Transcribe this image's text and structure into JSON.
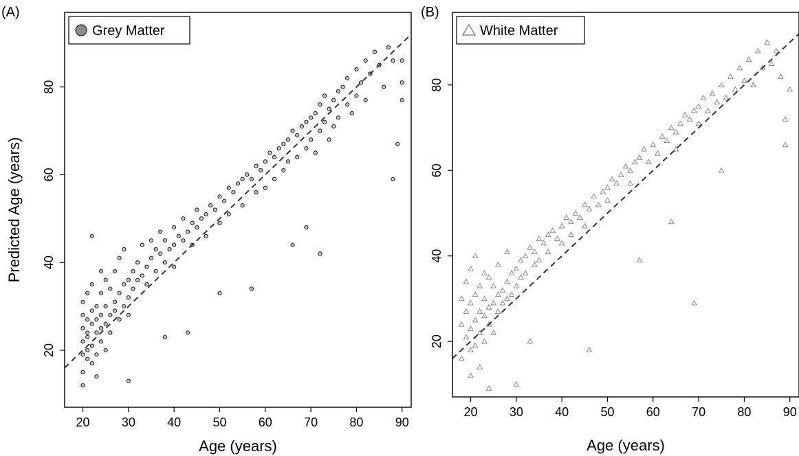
{
  "chart_data": [
    {
      "panel_label": "(A)",
      "type": "scatter",
      "legend": {
        "label": "Grey Matter",
        "placement": "top-left",
        "marker": "circle"
      },
      "xlabel": "Age (years)",
      "ylabel": "Predicted Age (years)",
      "xlim": [
        16,
        92
      ],
      "ylim": [
        7,
        97
      ],
      "xticks": [
        20,
        30,
        40,
        50,
        60,
        70,
        80,
        90
      ],
      "yticks": [
        20,
        40,
        60,
        80
      ],
      "reference_line": {
        "style": "dashed",
        "slope": 1,
        "intercept": 0
      },
      "grid": false,
      "colors": {
        "marker_fill": "#c8c8c8",
        "marker_stroke": "#1a1a1a"
      },
      "points": [
        [
          20,
          22
        ],
        [
          20,
          28
        ],
        [
          20,
          15
        ],
        [
          20,
          25
        ],
        [
          20,
          19
        ],
        [
          20,
          31
        ],
        [
          20,
          12
        ],
        [
          21,
          24
        ],
        [
          21,
          27
        ],
        [
          21,
          20
        ],
        [
          21,
          18
        ],
        [
          21,
          33
        ],
        [
          21,
          23
        ],
        [
          22,
          26
        ],
        [
          22,
          21
        ],
        [
          22,
          29
        ],
        [
          22,
          17
        ],
        [
          22,
          35
        ],
        [
          22,
          46
        ],
        [
          23,
          24
        ],
        [
          23,
          30
        ],
        [
          23,
          19
        ],
        [
          23,
          27
        ],
        [
          23,
          14
        ],
        [
          24,
          25
        ],
        [
          24,
          28
        ],
        [
          24,
          22
        ],
        [
          24,
          33
        ],
        [
          24,
          38
        ],
        [
          25,
          26
        ],
        [
          25,
          30
        ],
        [
          25,
          20
        ],
        [
          25,
          36
        ],
        [
          26,
          28
        ],
        [
          26,
          24
        ],
        [
          26,
          34
        ],
        [
          27,
          31
        ],
        [
          27,
          29
        ],
        [
          27,
          38
        ],
        [
          28,
          33
        ],
        [
          28,
          27
        ],
        [
          28,
          41
        ],
        [
          29,
          35
        ],
        [
          29,
          30
        ],
        [
          29,
          43
        ],
        [
          30,
          36
        ],
        [
          30,
          32
        ],
        [
          30,
          28
        ],
        [
          31,
          38
        ],
        [
          31,
          34
        ],
        [
          32,
          40
        ],
        [
          32,
          36
        ],
        [
          33,
          37
        ],
        [
          33,
          44
        ],
        [
          34,
          39
        ],
        [
          34,
          35
        ],
        [
          35,
          41
        ],
        [
          35,
          45
        ],
        [
          36,
          38
        ],
        [
          36,
          43
        ],
        [
          37,
          42
        ],
        [
          37,
          47
        ],
        [
          38,
          40
        ],
        [
          38,
          45
        ],
        [
          39,
          43
        ],
        [
          40,
          44
        ],
        [
          40,
          39
        ],
        [
          40,
          48
        ],
        [
          41,
          46
        ],
        [
          42,
          45
        ],
        [
          42,
          50
        ],
        [
          43,
          47
        ],
        [
          44,
          49
        ],
        [
          44,
          44
        ],
        [
          45,
          48
        ],
        [
          45,
          52
        ],
        [
          46,
          50
        ],
        [
          47,
          51
        ],
        [
          47,
          46
        ],
        [
          48,
          53
        ],
        [
          49,
          52
        ],
        [
          50,
          55
        ],
        [
          50,
          49
        ],
        [
          51,
          54
        ],
        [
          52,
          57
        ],
        [
          52,
          51
        ],
        [
          53,
          56
        ],
        [
          54,
          58
        ],
        [
          55,
          59
        ],
        [
          55,
          53
        ],
        [
          56,
          60
        ],
        [
          57,
          59
        ],
        [
          58,
          62
        ],
        [
          58,
          56
        ],
        [
          59,
          61
        ],
        [
          60,
          63
        ],
        [
          60,
          57
        ],
        [
          61,
          65
        ],
        [
          62,
          64
        ],
        [
          62,
          59
        ],
        [
          63,
          66
        ],
        [
          64,
          67
        ],
        [
          64,
          61
        ],
        [
          65,
          68
        ],
        [
          65,
          63
        ],
        [
          66,
          70
        ],
        [
          67,
          69
        ],
        [
          67,
          64
        ],
        [
          68,
          71
        ],
        [
          69,
          72
        ],
        [
          69,
          66
        ],
        [
          70,
          73
        ],
        [
          70,
          68
        ],
        [
          71,
          74
        ],
        [
          71,
          65
        ],
        [
          72,
          76
        ],
        [
          72,
          70
        ],
        [
          73,
          72
        ],
        [
          73,
          78
        ],
        [
          74,
          75
        ],
        [
          74,
          68
        ],
        [
          75,
          77
        ],
        [
          75,
          71
        ],
        [
          76,
          79
        ],
        [
          76,
          73
        ],
        [
          77,
          80
        ],
        [
          78,
          76
        ],
        [
          78,
          82
        ],
        [
          79,
          74
        ],
        [
          80,
          84
        ],
        [
          80,
          78
        ],
        [
          81,
          81
        ],
        [
          82,
          86
        ],
        [
          82,
          77
        ],
        [
          83,
          83
        ],
        [
          84,
          88
        ],
        [
          85,
          85
        ],
        [
          86,
          80
        ],
        [
          87,
          89
        ],
        [
          88,
          59
        ],
        [
          88,
          86
        ],
        [
          89,
          67
        ],
        [
          90,
          86
        ],
        [
          90,
          81
        ],
        [
          90,
          77
        ],
        [
          69,
          48
        ],
        [
          72,
          42
        ],
        [
          66,
          44
        ],
        [
          57,
          34
        ],
        [
          50,
          33
        ],
        [
          43,
          24
        ],
        [
          38,
          23
        ],
        [
          30,
          13
        ]
      ]
    },
    {
      "panel_label": "(B)",
      "type": "scatter",
      "legend": {
        "label": "White Matter",
        "placement": "top-left",
        "marker": "triangle"
      },
      "xlabel": "Age (years)",
      "ylabel": "",
      "xlim": [
        16,
        92
      ],
      "ylim": [
        7,
        97
      ],
      "xticks": [
        20,
        30,
        40,
        50,
        60,
        70,
        80,
        90
      ],
      "yticks": [
        20,
        40,
        60,
        80
      ],
      "reference_line": {
        "style": "dashed",
        "slope": 1,
        "intercept": 0
      },
      "grid": false,
      "colors": {
        "marker_stroke": "#8a8a8a"
      },
      "points": [
        [
          18,
          24
        ],
        [
          18,
          30
        ],
        [
          18,
          16
        ],
        [
          19,
          27
        ],
        [
          19,
          21
        ],
        [
          19,
          34
        ],
        [
          20,
          23
        ],
        [
          20,
          29
        ],
        [
          20,
          18
        ],
        [
          20,
          37
        ],
        [
          20,
          12
        ],
        [
          21,
          25
        ],
        [
          21,
          31
        ],
        [
          21,
          19
        ],
        [
          21,
          40
        ],
        [
          22,
          27
        ],
        [
          22,
          22
        ],
        [
          22,
          33
        ],
        [
          22,
          14
        ],
        [
          23,
          26
        ],
        [
          23,
          30
        ],
        [
          23,
          20
        ],
        [
          23,
          36
        ],
        [
          24,
          28
        ],
        [
          24,
          24
        ],
        [
          24,
          35
        ],
        [
          24,
          9
        ],
        [
          25,
          29
        ],
        [
          25,
          33
        ],
        [
          25,
          22
        ],
        [
          26,
          31
        ],
        [
          26,
          27
        ],
        [
          26,
          38
        ],
        [
          27,
          32
        ],
        [
          27,
          29
        ],
        [
          28,
          34
        ],
        [
          28,
          30
        ],
        [
          28,
          41
        ],
        [
          29,
          36
        ],
        [
          29,
          31
        ],
        [
          30,
          37
        ],
        [
          30,
          33
        ],
        [
          31,
          39
        ],
        [
          31,
          35
        ],
        [
          32,
          40
        ],
        [
          32,
          36
        ],
        [
          33,
          42
        ],
        [
          34,
          41
        ],
        [
          34,
          38
        ],
        [
          35,
          44
        ],
        [
          35,
          39
        ],
        [
          36,
          43
        ],
        [
          37,
          45
        ],
        [
          37,
          41
        ],
        [
          38,
          46
        ],
        [
          39,
          44
        ],
        [
          40,
          47
        ],
        [
          40,
          43
        ],
        [
          41,
          49
        ],
        [
          42,
          48
        ],
        [
          42,
          45
        ],
        [
          43,
          50
        ],
        [
          44,
          49
        ],
        [
          45,
          52
        ],
        [
          45,
          47
        ],
        [
          46,
          51
        ],
        [
          47,
          54
        ],
        [
          48,
          52
        ],
        [
          49,
          55
        ],
        [
          50,
          56
        ],
        [
          50,
          53
        ],
        [
          51,
          58
        ],
        [
          52,
          57
        ],
        [
          53,
          59
        ],
        [
          54,
          61
        ],
        [
          55,
          60
        ],
        [
          55,
          57
        ],
        [
          56,
          62
        ],
        [
          57,
          63
        ],
        [
          58,
          65
        ],
        [
          59,
          62
        ],
        [
          60,
          66
        ],
        [
          61,
          64
        ],
        [
          62,
          68
        ],
        [
          63,
          67
        ],
        [
          64,
          70
        ],
        [
          65,
          69
        ],
        [
          65,
          65
        ],
        [
          66,
          71
        ],
        [
          67,
          73
        ],
        [
          68,
          72
        ],
        [
          69,
          74
        ],
        [
          70,
          75
        ],
        [
          70,
          71
        ],
        [
          71,
          77
        ],
        [
          72,
          74
        ],
        [
          73,
          78
        ],
        [
          74,
          76
        ],
        [
          75,
          80
        ],
        [
          76,
          77
        ],
        [
          77,
          82
        ],
        [
          78,
          79
        ],
        [
          79,
          84
        ],
        [
          80,
          81
        ],
        [
          81,
          86
        ],
        [
          82,
          80
        ],
        [
          83,
          88
        ],
        [
          84,
          84
        ],
        [
          85,
          90
        ],
        [
          86,
          85
        ],
        [
          87,
          88
        ],
        [
          88,
          82
        ],
        [
          89,
          72
        ],
        [
          90,
          79
        ],
        [
          89,
          66
        ],
        [
          69,
          29
        ],
        [
          46,
          18
        ],
        [
          33,
          20
        ],
        [
          30,
          10
        ],
        [
          57,
          39
        ],
        [
          64,
          48
        ],
        [
          75,
          60
        ]
      ]
    }
  ]
}
